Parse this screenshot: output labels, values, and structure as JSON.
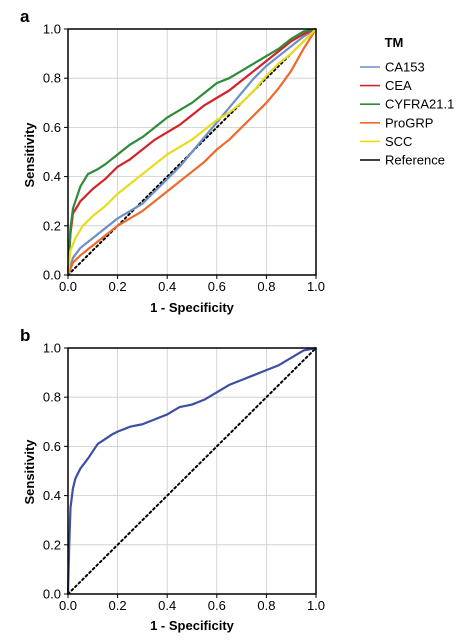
{
  "chart_data": [
    {
      "panel": "a",
      "type": "line",
      "xlabel": "1 - Specificity",
      "ylabel": "Sensitivity",
      "xlim": [
        0,
        1
      ],
      "ylim": [
        0,
        1
      ],
      "xticks": [
        "0.0",
        "0.2",
        "0.4",
        "0.6",
        "0.8",
        "1.0"
      ],
      "yticks": [
        "0.0",
        "0.2",
        "0.4",
        "0.6",
        "0.8",
        "1.0"
      ],
      "grid": true,
      "legend": {
        "title": "TM",
        "position": "right"
      },
      "series": [
        {
          "name": "CA153",
          "color": "#6d8fc6",
          "style": "solid",
          "points": [
            [
              0,
              0
            ],
            [
              0.02,
              0.07
            ],
            [
              0.05,
              0.11
            ],
            [
              0.1,
              0.15
            ],
            [
              0.15,
              0.19
            ],
            [
              0.2,
              0.23
            ],
            [
              0.25,
              0.26
            ],
            [
              0.3,
              0.29
            ],
            [
              0.35,
              0.34
            ],
            [
              0.4,
              0.39
            ],
            [
              0.45,
              0.44
            ],
            [
              0.5,
              0.5
            ],
            [
              0.55,
              0.56
            ],
            [
              0.6,
              0.62
            ],
            [
              0.65,
              0.68
            ],
            [
              0.7,
              0.74
            ],
            [
              0.75,
              0.8
            ],
            [
              0.8,
              0.85
            ],
            [
              0.85,
              0.89
            ],
            [
              0.9,
              0.93
            ],
            [
              0.95,
              0.97
            ],
            [
              1,
              1
            ]
          ]
        },
        {
          "name": "CEA",
          "color": "#d2232a",
          "style": "solid",
          "points": [
            [
              0,
              0
            ],
            [
              0.01,
              0.17
            ],
            [
              0.02,
              0.25
            ],
            [
              0.05,
              0.3
            ],
            [
              0.1,
              0.35
            ],
            [
              0.15,
              0.39
            ],
            [
              0.2,
              0.44
            ],
            [
              0.25,
              0.47
            ],
            [
              0.3,
              0.51
            ],
            [
              0.35,
              0.55
            ],
            [
              0.4,
              0.58
            ],
            [
              0.45,
              0.61
            ],
            [
              0.5,
              0.65
            ],
            [
              0.55,
              0.69
            ],
            [
              0.6,
              0.72
            ],
            [
              0.65,
              0.75
            ],
            [
              0.7,
              0.79
            ],
            [
              0.75,
              0.83
            ],
            [
              0.8,
              0.87
            ],
            [
              0.85,
              0.91
            ],
            [
              0.9,
              0.95
            ],
            [
              0.95,
              0.98
            ],
            [
              1,
              1
            ]
          ]
        },
        {
          "name": "CYFRA21.1",
          "color": "#2e8b3a",
          "style": "solid",
          "points": [
            [
              0,
              0
            ],
            [
              0.01,
              0.19
            ],
            [
              0.02,
              0.27
            ],
            [
              0.05,
              0.36
            ],
            [
              0.08,
              0.41
            ],
            [
              0.12,
              0.43
            ],
            [
              0.15,
              0.45
            ],
            [
              0.2,
              0.49
            ],
            [
              0.25,
              0.53
            ],
            [
              0.3,
              0.56
            ],
            [
              0.35,
              0.6
            ],
            [
              0.4,
              0.64
            ],
            [
              0.45,
              0.67
            ],
            [
              0.5,
              0.7
            ],
            [
              0.55,
              0.74
            ],
            [
              0.6,
              0.78
            ],
            [
              0.65,
              0.8
            ],
            [
              0.7,
              0.83
            ],
            [
              0.75,
              0.86
            ],
            [
              0.8,
              0.89
            ],
            [
              0.85,
              0.92
            ],
            [
              0.9,
              0.96
            ],
            [
              0.95,
              0.99
            ],
            [
              1,
              1
            ]
          ]
        },
        {
          "name": "ProGRP",
          "color": "#ee6a2c",
          "style": "solid",
          "points": [
            [
              0,
              0
            ],
            [
              0.02,
              0.05
            ],
            [
              0.05,
              0.08
            ],
            [
              0.1,
              0.12
            ],
            [
              0.15,
              0.16
            ],
            [
              0.2,
              0.2
            ],
            [
              0.25,
              0.23
            ],
            [
              0.3,
              0.26
            ],
            [
              0.35,
              0.3
            ],
            [
              0.4,
              0.34
            ],
            [
              0.45,
              0.38
            ],
            [
              0.5,
              0.42
            ],
            [
              0.55,
              0.46
            ],
            [
              0.6,
              0.51
            ],
            [
              0.65,
              0.55
            ],
            [
              0.7,
              0.6
            ],
            [
              0.75,
              0.65
            ],
            [
              0.8,
              0.7
            ],
            [
              0.85,
              0.76
            ],
            [
              0.9,
              0.83
            ],
            [
              0.95,
              0.92
            ],
            [
              1,
              1
            ]
          ]
        },
        {
          "name": "SCC",
          "color": "#e8dc1c",
          "style": "solid",
          "points": [
            [
              0,
              0
            ],
            [
              0.01,
              0.1
            ],
            [
              0.03,
              0.15
            ],
            [
              0.06,
              0.2
            ],
            [
              0.1,
              0.24
            ],
            [
              0.15,
              0.28
            ],
            [
              0.2,
              0.33
            ],
            [
              0.25,
              0.37
            ],
            [
              0.3,
              0.41
            ],
            [
              0.35,
              0.45
            ],
            [
              0.4,
              0.49
            ],
            [
              0.45,
              0.52
            ],
            [
              0.5,
              0.55
            ],
            [
              0.55,
              0.59
            ],
            [
              0.6,
              0.63
            ],
            [
              0.65,
              0.66
            ],
            [
              0.7,
              0.7
            ],
            [
              0.75,
              0.75
            ],
            [
              0.8,
              0.81
            ],
            [
              0.85,
              0.86
            ],
            [
              0.9,
              0.9
            ],
            [
              0.95,
              0.95
            ],
            [
              1,
              1
            ]
          ]
        },
        {
          "name": "Reference",
          "color": "#000000",
          "style": "dotted",
          "points": [
            [
              0,
              0
            ],
            [
              1,
              1
            ]
          ]
        }
      ]
    },
    {
      "panel": "b",
      "type": "line",
      "xlabel": "1 - Specificity",
      "ylabel": "Sensitivity",
      "xlim": [
        0,
        1
      ],
      "ylim": [
        0,
        1
      ],
      "xticks": [
        "0.0",
        "0.2",
        "0.4",
        "0.6",
        "0.8",
        "1.0"
      ],
      "yticks": [
        "0.0",
        "0.2",
        "0.4",
        "0.6",
        "0.8",
        "1.0"
      ],
      "grid": true,
      "series": [
        {
          "color": "#3d4fa3",
          "style": "solid",
          "points": [
            [
              0,
              0
            ],
            [
              0.005,
              0.2
            ],
            [
              0.01,
              0.35
            ],
            [
              0.02,
              0.43
            ],
            [
              0.03,
              0.47
            ],
            [
              0.05,
              0.51
            ],
            [
              0.08,
              0.55
            ],
            [
              0.1,
              0.58
            ],
            [
              0.12,
              0.61
            ],
            [
              0.15,
              0.63
            ],
            [
              0.18,
              0.65
            ],
            [
              0.2,
              0.66
            ],
            [
              0.25,
              0.68
            ],
            [
              0.3,
              0.69
            ],
            [
              0.35,
              0.71
            ],
            [
              0.4,
              0.73
            ],
            [
              0.45,
              0.76
            ],
            [
              0.5,
              0.77
            ],
            [
              0.55,
              0.79
            ],
            [
              0.6,
              0.82
            ],
            [
              0.65,
              0.85
            ],
            [
              0.7,
              0.87
            ],
            [
              0.75,
              0.89
            ],
            [
              0.8,
              0.91
            ],
            [
              0.85,
              0.93
            ],
            [
              0.9,
              0.96
            ],
            [
              0.95,
              0.99
            ],
            [
              1,
              1
            ]
          ]
        },
        {
          "color": "#000000",
          "style": "dotted",
          "points": [
            [
              0,
              0
            ],
            [
              1,
              1
            ]
          ]
        }
      ]
    }
  ]
}
